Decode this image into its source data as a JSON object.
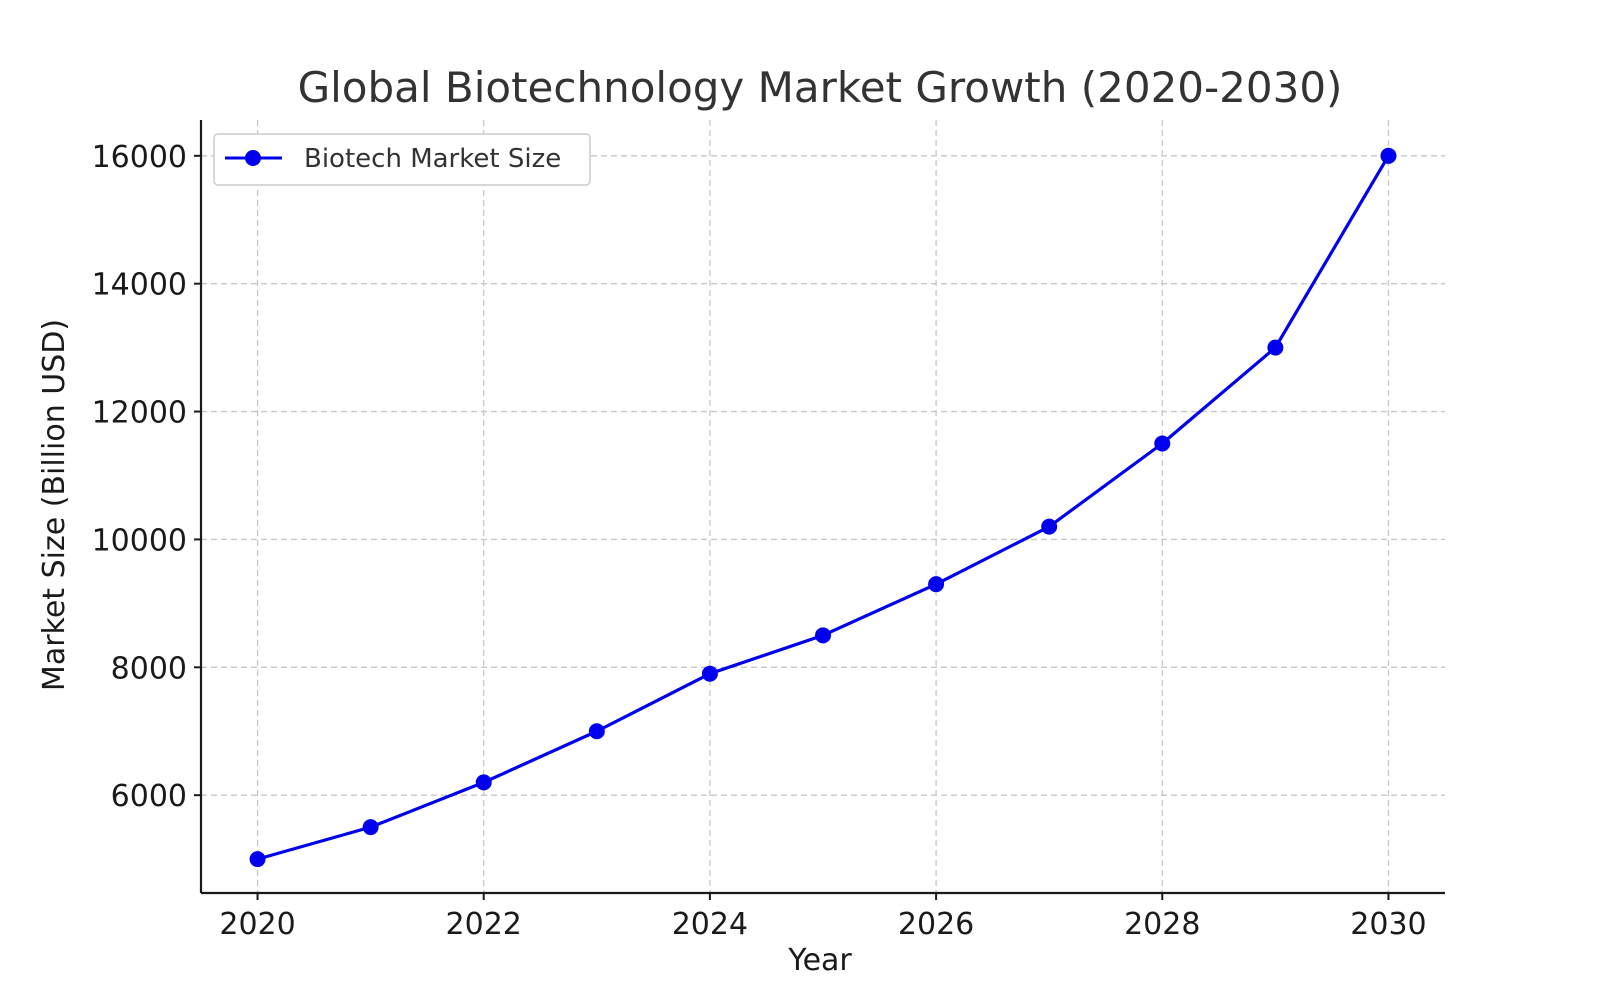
{
  "chart_data": {
    "type": "line",
    "title": "Global Biotechnology Market Growth (2020-2030)",
    "xlabel": "Year",
    "ylabel": "Market Size (Billion USD)",
    "x": [
      2020,
      2021,
      2022,
      2023,
      2024,
      2025,
      2026,
      2027,
      2028,
      2029,
      2030
    ],
    "series": [
      {
        "name": "Biotech Market Size",
        "values": [
          5000,
          5500,
          6200,
          7000,
          7900,
          8500,
          9300,
          10200,
          11500,
          13000,
          16000
        ],
        "color": "#0000ee"
      }
    ],
    "xlim": [
      2019.5,
      2030.5
    ],
    "ylim": [
      4470,
      16560
    ],
    "x_ticks": [
      2020,
      2022,
      2024,
      2026,
      2028,
      2030
    ],
    "y_ticks": [
      6000,
      8000,
      10000,
      12000,
      14000,
      16000
    ],
    "x_tick_labels": [
      "2020",
      "2022",
      "2024",
      "2026",
      "2028",
      "2030"
    ],
    "y_tick_labels": [
      "6000",
      "8000",
      "10000",
      "12000",
      "14000",
      "16000"
    ],
    "grid": true,
    "legend_position": "top-left"
  }
}
